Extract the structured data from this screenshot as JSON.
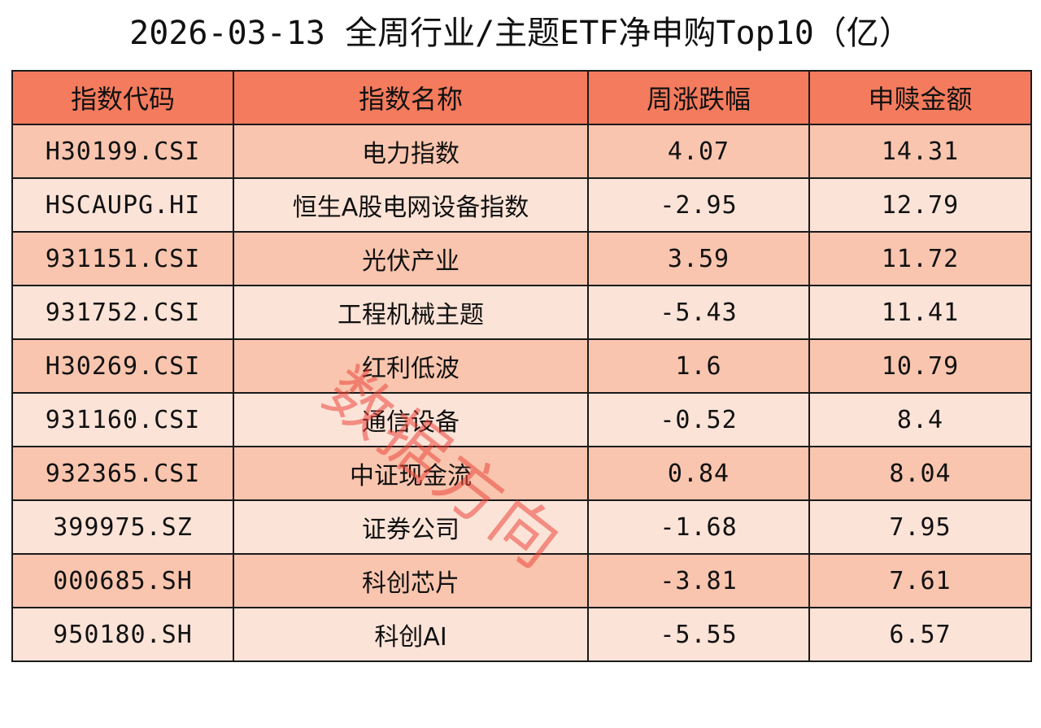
{
  "title": "2026-03-13 全周行业/主题ETF净申购Top10（亿）",
  "watermark": "数据方向",
  "columns": [
    "指数代码",
    "指数名称",
    "周涨跌幅",
    "申赎金额"
  ],
  "rows": [
    {
      "code": "H30199.CSI",
      "name": "电力指数",
      "change": "4.07",
      "amount": "14.31"
    },
    {
      "code": "HSCAUPG.HI",
      "name": "恒生A股电网设备指数",
      "change": "-2.95",
      "amount": "12.79"
    },
    {
      "code": "931151.CSI",
      "name": "光伏产业",
      "change": "3.59",
      "amount": "11.72"
    },
    {
      "code": "931752.CSI",
      "name": "工程机械主题",
      "change": "-5.43",
      "amount": "11.41"
    },
    {
      "code": "H30269.CSI",
      "name": "红利低波",
      "change": "1.6",
      "amount": "10.79"
    },
    {
      "code": "931160.CSI",
      "name": "通信设备",
      "change": "-0.52",
      "amount": "8.4"
    },
    {
      "code": "932365.CSI",
      "name": "中证现金流",
      "change": "0.84",
      "amount": "8.04"
    },
    {
      "code": "399975.SZ",
      "name": "证券公司",
      "change": "-1.68",
      "amount": "7.95"
    },
    {
      "code": "000685.SH",
      "name": "科创芯片",
      "change": "-3.81",
      "amount": "7.61"
    },
    {
      "code": "950180.SH",
      "name": "科创AI",
      "change": "-5.55",
      "amount": "6.57"
    }
  ],
  "colors": {
    "header_bg": "#f47b5d",
    "row_odd_bg": "#f9c5ae",
    "row_even_bg": "#fce3d7",
    "watermark": "#eb463c"
  }
}
